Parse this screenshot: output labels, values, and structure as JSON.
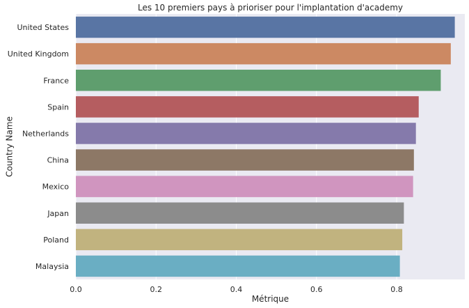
{
  "chart_data": {
    "type": "bar",
    "orientation": "horizontal",
    "title": "Les 10 premiers pays à prioriser pour l'implantation d'academy",
    "xlabel": "Métrique",
    "ylabel": "Country Name",
    "xlim": [
      0,
      0.97
    ],
    "xticks": [
      0.0,
      0.2,
      0.4,
      0.6,
      0.8
    ],
    "xtick_labels": [
      "0.0",
      "0.2",
      "0.4",
      "0.6",
      "0.8"
    ],
    "grid": true,
    "categories": [
      "United States",
      "United Kingdom",
      "France",
      "Spain",
      "Netherlands",
      "China",
      "Mexico",
      "Japan",
      "Poland",
      "Malaysia"
    ],
    "values": [
      0.945,
      0.935,
      0.91,
      0.855,
      0.848,
      0.843,
      0.841,
      0.818,
      0.814,
      0.808
    ],
    "colors": [
      "#5975a4",
      "#cc8963",
      "#5f9e6e",
      "#b55d60",
      "#857aab",
      "#8d7866",
      "#d095bf",
      "#8c8c8c",
      "#c1b37f",
      "#6aaec3"
    ],
    "plot_background": "#eaeaf2",
    "grid_color": "#ffffff"
  }
}
